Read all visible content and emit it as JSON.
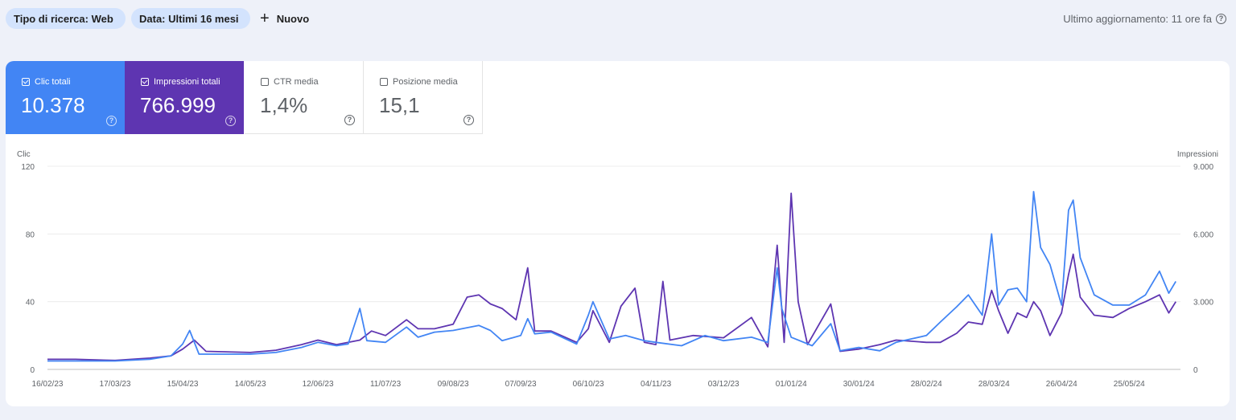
{
  "filters": [
    {
      "label": "Tipo di ricerca: Web"
    },
    {
      "label": "Data: Ultimi 16 mesi"
    }
  ],
  "new_label": "Nuovo",
  "last_update": "Ultimo aggiornamento: 11 ore fa",
  "metrics": [
    {
      "label": "Clic totali",
      "value": "10.378",
      "checked": true
    },
    {
      "label": "Impressioni totali",
      "value": "766.999",
      "checked": true
    },
    {
      "label": "CTR media",
      "value": "1,4%",
      "checked": false
    },
    {
      "label": "Posizione media",
      "value": "15,1",
      "checked": false
    }
  ],
  "colors": {
    "clicks": "#4285f4",
    "impressions": "#5e35b1"
  },
  "chart_data": {
    "type": "line",
    "left_axis_label": "Clic",
    "right_axis_label": "Impressioni",
    "left_ticks": [
      "0",
      "40",
      "80",
      "120"
    ],
    "right_ticks": [
      "0",
      "3.000",
      "6.000",
      "9.000"
    ],
    "ylim_left": [
      0,
      120
    ],
    "ylim_right": [
      0,
      9000
    ],
    "x_start": "2023-02-16",
    "x_end": "2024-06-16",
    "x_ticks": [
      "16/02/23",
      "17/03/23",
      "15/04/23",
      "14/05/23",
      "12/06/23",
      "11/07/23",
      "09/08/23",
      "07/09/23",
      "06/10/23",
      "04/11/23",
      "03/12/23",
      "01/01/24",
      "30/01/24",
      "28/02/24",
      "28/03/24",
      "26/04/24",
      "25/05/24"
    ],
    "grid": true,
    "series": [
      {
        "name": "Clic",
        "axis": "left",
        "points": [
          [
            "2023-02-16",
            5
          ],
          [
            "2023-02-28",
            5
          ],
          [
            "2023-03-17",
            5
          ],
          [
            "2023-04-01",
            6
          ],
          [
            "2023-04-10",
            8
          ],
          [
            "2023-04-15",
            15
          ],
          [
            "2023-04-18",
            23
          ],
          [
            "2023-04-22",
            9
          ],
          [
            "2023-05-01",
            9
          ],
          [
            "2023-05-14",
            9
          ],
          [
            "2023-05-25",
            10
          ],
          [
            "2023-06-05",
            13
          ],
          [
            "2023-06-12",
            16
          ],
          [
            "2023-06-20",
            14
          ],
          [
            "2023-06-25",
            15
          ],
          [
            "2023-06-30",
            36
          ],
          [
            "2023-07-03",
            17
          ],
          [
            "2023-07-11",
            16
          ],
          [
            "2023-07-20",
            25
          ],
          [
            "2023-07-25",
            19
          ],
          [
            "2023-08-01",
            22
          ],
          [
            "2023-08-09",
            23
          ],
          [
            "2023-08-20",
            26
          ],
          [
            "2023-08-25",
            23
          ],
          [
            "2023-08-30",
            17
          ],
          [
            "2023-09-07",
            20
          ],
          [
            "2023-09-10",
            30
          ],
          [
            "2023-09-13",
            21
          ],
          [
            "2023-09-20",
            22
          ],
          [
            "2023-10-01",
            15
          ],
          [
            "2023-10-06",
            32
          ],
          [
            "2023-10-08",
            40
          ],
          [
            "2023-10-15",
            18
          ],
          [
            "2023-10-22",
            20
          ],
          [
            "2023-10-30",
            17
          ],
          [
            "2023-11-04",
            16
          ],
          [
            "2023-11-15",
            14
          ],
          [
            "2023-11-25",
            20
          ],
          [
            "2023-12-03",
            17
          ],
          [
            "2023-12-15",
            19
          ],
          [
            "2023-12-22",
            16
          ],
          [
            "2023-12-26",
            60
          ],
          [
            "2023-12-28",
            36
          ],
          [
            "2024-01-01",
            19
          ],
          [
            "2024-01-10",
            14
          ],
          [
            "2024-01-18",
            27
          ],
          [
            "2024-01-22",
            11
          ],
          [
            "2024-01-30",
            13
          ],
          [
            "2024-02-08",
            11
          ],
          [
            "2024-02-15",
            16
          ],
          [
            "2024-02-28",
            20
          ],
          [
            "2024-03-05",
            28
          ],
          [
            "2024-03-12",
            37
          ],
          [
            "2024-03-17",
            44
          ],
          [
            "2024-03-23",
            32
          ],
          [
            "2024-03-27",
            80
          ],
          [
            "2024-03-30",
            38
          ],
          [
            "2024-04-03",
            47
          ],
          [
            "2024-04-07",
            48
          ],
          [
            "2024-04-11",
            40
          ],
          [
            "2024-04-14",
            105
          ],
          [
            "2024-04-17",
            72
          ],
          [
            "2024-04-21",
            62
          ],
          [
            "2024-04-26",
            38
          ],
          [
            "2024-04-29",
            94
          ],
          [
            "2024-05-01",
            100
          ],
          [
            "2024-05-04",
            66
          ],
          [
            "2024-05-10",
            44
          ],
          [
            "2024-05-18",
            38
          ],
          [
            "2024-05-25",
            38
          ],
          [
            "2024-06-01",
            44
          ],
          [
            "2024-06-07",
            58
          ],
          [
            "2024-06-11",
            45
          ],
          [
            "2024-06-14",
            52
          ]
        ]
      },
      {
        "name": "Impressioni",
        "axis": "right",
        "points": [
          [
            "2023-02-16",
            450
          ],
          [
            "2023-02-28",
            450
          ],
          [
            "2023-03-17",
            400
          ],
          [
            "2023-04-01",
            500
          ],
          [
            "2023-04-10",
            600
          ],
          [
            "2023-04-15",
            900
          ],
          [
            "2023-04-20",
            1300
          ],
          [
            "2023-04-25",
            800
          ],
          [
            "2023-05-14",
            750
          ],
          [
            "2023-05-25",
            850
          ],
          [
            "2023-06-05",
            1100
          ],
          [
            "2023-06-12",
            1300
          ],
          [
            "2023-06-20",
            1100
          ],
          [
            "2023-06-30",
            1300
          ],
          [
            "2023-07-05",
            1700
          ],
          [
            "2023-07-11",
            1500
          ],
          [
            "2023-07-20",
            2200
          ],
          [
            "2023-07-25",
            1800
          ],
          [
            "2023-08-01",
            1800
          ],
          [
            "2023-08-09",
            2000
          ],
          [
            "2023-08-15",
            3200
          ],
          [
            "2023-08-20",
            3300
          ],
          [
            "2023-08-25",
            2900
          ],
          [
            "2023-08-30",
            2700
          ],
          [
            "2023-09-05",
            2200
          ],
          [
            "2023-09-10",
            4500
          ],
          [
            "2023-09-13",
            1700
          ],
          [
            "2023-09-20",
            1700
          ],
          [
            "2023-10-01",
            1200
          ],
          [
            "2023-10-06",
            1800
          ],
          [
            "2023-10-08",
            2600
          ],
          [
            "2023-10-15",
            1200
          ],
          [
            "2023-10-20",
            2800
          ],
          [
            "2023-10-26",
            3600
          ],
          [
            "2023-10-30",
            1200
          ],
          [
            "2023-11-04",
            1100
          ],
          [
            "2023-11-07",
            3900
          ],
          [
            "2023-11-10",
            1300
          ],
          [
            "2023-11-20",
            1500
          ],
          [
            "2023-12-03",
            1400
          ],
          [
            "2023-12-15",
            2300
          ],
          [
            "2023-12-22",
            1000
          ],
          [
            "2023-12-26",
            5500
          ],
          [
            "2023-12-29",
            1200
          ],
          [
            "2024-01-01",
            7800
          ],
          [
            "2024-01-04",
            3000
          ],
          [
            "2024-01-08",
            1100
          ],
          [
            "2024-01-18",
            2900
          ],
          [
            "2024-01-22",
            800
          ],
          [
            "2024-01-30",
            900
          ],
          [
            "2024-02-08",
            1100
          ],
          [
            "2024-02-15",
            1300
          ],
          [
            "2024-02-28",
            1200
          ],
          [
            "2024-03-05",
            1200
          ],
          [
            "2024-03-12",
            1600
          ],
          [
            "2024-03-17",
            2100
          ],
          [
            "2024-03-23",
            2000
          ],
          [
            "2024-03-27",
            3500
          ],
          [
            "2024-03-30",
            2600
          ],
          [
            "2024-04-03",
            1600
          ],
          [
            "2024-04-07",
            2500
          ],
          [
            "2024-04-11",
            2300
          ],
          [
            "2024-04-14",
            3000
          ],
          [
            "2024-04-17",
            2600
          ],
          [
            "2024-04-21",
            1500
          ],
          [
            "2024-04-26",
            2500
          ],
          [
            "2024-04-29",
            4200
          ],
          [
            "2024-05-01",
            5100
          ],
          [
            "2024-05-04",
            3200
          ],
          [
            "2024-05-10",
            2400
          ],
          [
            "2024-05-18",
            2300
          ],
          [
            "2024-05-25",
            2700
          ],
          [
            "2024-06-01",
            3000
          ],
          [
            "2024-06-07",
            3300
          ],
          [
            "2024-06-11",
            2500
          ],
          [
            "2024-06-14",
            3000
          ]
        ]
      }
    ]
  }
}
